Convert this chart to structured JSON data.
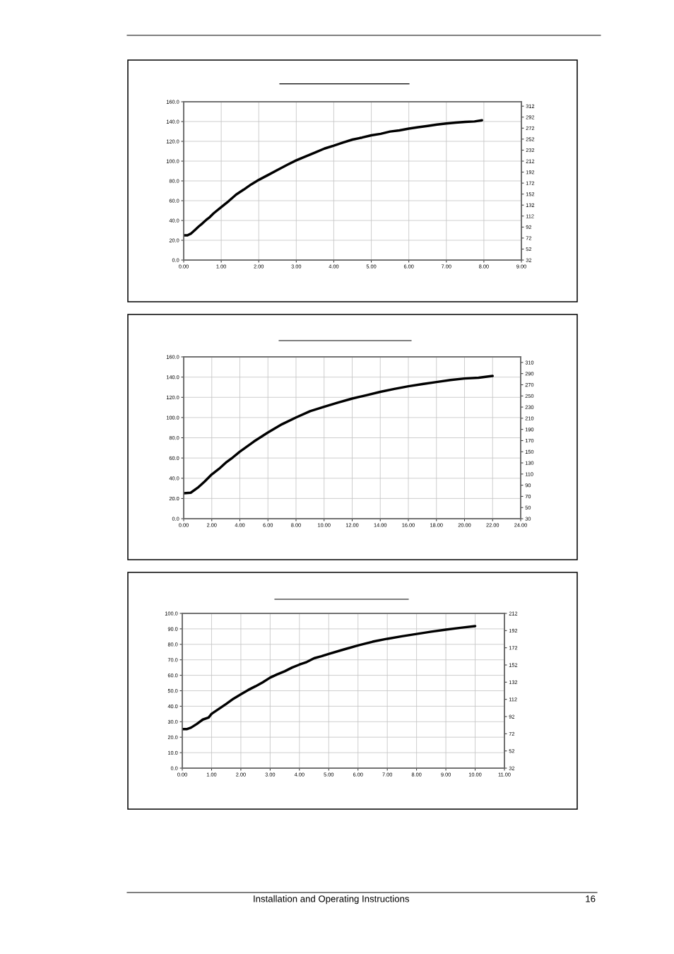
{
  "chart_data": [
    {
      "type": "line",
      "grid": true,
      "marker": "none",
      "line_style": "solid",
      "series": [
        {
          "color": "#000000",
          "x": [
            0,
            0.1,
            0.2,
            0.3,
            0.4,
            0.5,
            0.6,
            0.7,
            0.8,
            1.0,
            1.2,
            1.4,
            1.6,
            1.8,
            2.0,
            2.25,
            2.5,
            2.75,
            3.0,
            3.25,
            3.5,
            3.75,
            4.0,
            4.25,
            4.5,
            4.75,
            5.0,
            5.25,
            5.5,
            5.75,
            6.0,
            6.25,
            6.5,
            6.75,
            7.0,
            7.25,
            7.5,
            7.75,
            7.95
          ],
          "values": [
            25,
            25,
            26.9,
            30.4,
            33.9,
            37.1,
            40.6,
            43.5,
            47.3,
            53.5,
            59.6,
            66.3,
            71.2,
            76.5,
            81,
            86,
            91.1,
            96.1,
            100.8,
            104.8,
            108.6,
            112.7,
            115.6,
            118.8,
            121.8,
            123.8,
            126.1,
            127.6,
            129.9,
            131.1,
            132.8,
            134.3,
            135.5,
            136.9,
            138.1,
            139,
            139.6,
            140.1,
            141.3
          ]
        }
      ],
      "xlim": [
        0,
        9
      ],
      "xticks": [
        {
          "value": 0,
          "label": "0.00"
        },
        {
          "value": 1,
          "label": "1.00"
        },
        {
          "value": 2,
          "label": "2.00"
        },
        {
          "value": 3,
          "label": "3.00"
        },
        {
          "value": 4,
          "label": "4.00"
        },
        {
          "value": 5,
          "label": "5.00"
        },
        {
          "value": 6,
          "label": "6.00"
        },
        {
          "value": 7,
          "label": "7.00"
        },
        {
          "value": 8,
          "label": "8.00"
        },
        {
          "value": 9,
          "label": "9.00"
        }
      ],
      "ylim": [
        0,
        160
      ],
      "yticks": [
        {
          "value": 0,
          "label": "0.0"
        },
        {
          "value": 20,
          "label": "20.0"
        },
        {
          "value": 40,
          "label": "40.0"
        },
        {
          "value": 60,
          "label": "60.0"
        },
        {
          "value": 80,
          "label": "80.0"
        },
        {
          "value": 100,
          "label": "100.0"
        },
        {
          "value": 120,
          "label": "120.0"
        },
        {
          "value": 140,
          "label": "140.0"
        },
        {
          "value": 160,
          "label": "160.0"
        }
      ],
      "y2lim": [
        32,
        320
      ],
      "y2ticks": [
        32,
        52,
        72,
        92,
        112,
        132,
        152,
        172,
        192,
        212,
        232,
        252,
        272,
        292,
        312
      ]
    },
    {
      "type": "line",
      "grid": true,
      "marker": "none",
      "line_style": "solid",
      "series": [
        {
          "color": "#000000",
          "x": [
            0,
            0.5,
            1,
            1.5,
            2,
            2.5,
            3,
            3.5,
            4,
            5,
            6,
            7,
            8,
            9,
            10,
            11,
            12,
            13,
            14,
            15,
            16,
            17,
            18,
            19,
            20,
            21,
            22
          ],
          "values": [
            25.1,
            25.7,
            30.6,
            36.9,
            43.8,
            49.1,
            55.4,
            60.6,
            66.3,
            76.3,
            85.2,
            93.4,
            100.1,
            106.3,
            110.6,
            114.9,
            118.8,
            122,
            125.4,
            128.3,
            130.9,
            133.1,
            135.1,
            137.1,
            138.6,
            139.4,
            141.1
          ]
        }
      ],
      "xlim": [
        0,
        24
      ],
      "xticks": [
        {
          "value": 0,
          "label": "0.00"
        },
        {
          "value": 2,
          "label": "2.00"
        },
        {
          "value": 4,
          "label": "4.00"
        },
        {
          "value": 6,
          "label": "6.00"
        },
        {
          "value": 8,
          "label": "8.00"
        },
        {
          "value": 10,
          "label": "10.00"
        },
        {
          "value": 12,
          "label": "12.00"
        },
        {
          "value": 14,
          "label": "14.00"
        },
        {
          "value": 16,
          "label": "16.00"
        },
        {
          "value": 18,
          "label": "18.00"
        },
        {
          "value": 20,
          "label": "20.00"
        },
        {
          "value": 22,
          "label": "22.00"
        },
        {
          "value": 24,
          "label": "24.00"
        }
      ],
      "ylim": [
        0,
        160
      ],
      "yticks": [
        {
          "value": 0,
          "label": "0.0"
        },
        {
          "value": 20,
          "label": "20.0"
        },
        {
          "value": 40,
          "label": "40.0"
        },
        {
          "value": 60,
          "label": "60.0"
        },
        {
          "value": 80,
          "label": "80.0"
        },
        {
          "value": 100,
          "label": "100.0"
        },
        {
          "value": 120,
          "label": "120.0"
        },
        {
          "value": 140,
          "label": "140.0"
        },
        {
          "value": 160,
          "label": "160.0"
        }
      ],
      "y2lim": [
        30,
        320
      ],
      "y2ticks": [
        30,
        50,
        70,
        90,
        110,
        130,
        150,
        170,
        190,
        210,
        230,
        250,
        270,
        290,
        310
      ]
    },
    {
      "type": "line",
      "grid": true,
      "marker": "none",
      "line_style": "solid",
      "series": [
        {
          "color": "#000000",
          "x": [
            0,
            0.15,
            0.3,
            0.5,
            0.7,
            0.9,
            1.0,
            1.25,
            1.5,
            1.75,
            2.0,
            2.25,
            2.5,
            2.75,
            3.0,
            3.25,
            3.5,
            3.75,
            4.0,
            4.25,
            4.5,
            4.75,
            5.0,
            5.5,
            6.0,
            6.5,
            7.0,
            7.5,
            8.0,
            8.5,
            9.0,
            9.5,
            10.0
          ],
          "values": [
            25.2,
            25.2,
            26.2,
            28.6,
            31.4,
            32.7,
            35.1,
            38.3,
            41.5,
            44.9,
            47.7,
            50.5,
            52.9,
            55.5,
            58.5,
            60.7,
            62.6,
            65,
            66.9,
            68.6,
            71,
            72.3,
            73.8,
            76.6,
            79.3,
            81.7,
            83.6,
            85.2,
            86.7,
            88.2,
            89.5,
            90.7,
            91.8
          ]
        }
      ],
      "xlim": [
        0,
        11
      ],
      "xticks": [
        {
          "value": 0,
          "label": "0.00"
        },
        {
          "value": 1,
          "label": "1.00"
        },
        {
          "value": 2,
          "label": "2.00"
        },
        {
          "value": 3,
          "label": "3.00"
        },
        {
          "value": 4,
          "label": "4.00"
        },
        {
          "value": 5,
          "label": "5.00"
        },
        {
          "value": 6,
          "label": "6.00"
        },
        {
          "value": 7,
          "label": "7.00"
        },
        {
          "value": 8,
          "label": "8.00"
        },
        {
          "value": 9,
          "label": "9.00"
        },
        {
          "value": 10,
          "label": "10.00"
        },
        {
          "value": 11,
          "label": "11.00"
        }
      ],
      "ylim": [
        0,
        100
      ],
      "yticks": [
        {
          "value": 0,
          "label": "0.0"
        },
        {
          "value": 10,
          "label": "10.0"
        },
        {
          "value": 20,
          "label": "20.0"
        },
        {
          "value": 30,
          "label": "30.0"
        },
        {
          "value": 40,
          "label": "40.0"
        },
        {
          "value": 50,
          "label": "50.0"
        },
        {
          "value": 60,
          "label": "60.0"
        },
        {
          "value": 70,
          "label": "70.0"
        },
        {
          "value": 80,
          "label": "80.0"
        },
        {
          "value": 90,
          "label": "90.0"
        },
        {
          "value": 100,
          "label": "100.0"
        }
      ],
      "y2lim": [
        32,
        212
      ],
      "y2ticks": [
        32,
        52,
        72,
        92,
        112,
        132,
        152,
        172,
        192,
        212
      ],
      "annotations": [
        "Installation and Operating Instructions",
        "16"
      ]
    }
  ]
}
